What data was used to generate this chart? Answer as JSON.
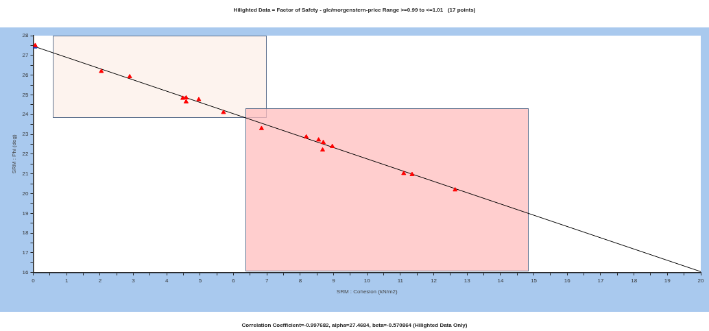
{
  "chart_data": {
    "type": "scatter",
    "title": "Hilighted Data = Factor of Safety - gle/morgenstern-price Range >=0.99 to <=1.01   (17 points)",
    "xlabel": "SRM : Cohesion (kN/m2)",
    "ylabel": "SRM : Phi (deg)",
    "annotations": [
      "Correlation Coefficient=-0.997682, alpha=27.4684, beta=-0.570864 (Hilighted Data Only)"
    ],
    "xlim": [
      0,
      20
    ],
    "ylim": [
      16,
      28
    ],
    "xticks": [
      0,
      {
        "value": 0.5,
        "label": null
      },
      1,
      {
        "value": 1.5,
        "label": null
      },
      2,
      {
        "value": 2.5,
        "label": null
      },
      3,
      {
        "value": 3.5,
        "label": null
      },
      4,
      {
        "value": 4.5,
        "label": null
      },
      5,
      {
        "value": 5.5,
        "label": null
      },
      6,
      {
        "value": 6.5,
        "label": null
      },
      7,
      {
        "value": 7.5,
        "label": null
      },
      8,
      {
        "value": 8.5,
        "label": null
      },
      9,
      {
        "value": 9.5,
        "label": null
      },
      10,
      {
        "value": 10.5,
        "label": null
      },
      11,
      {
        "value": 11.5,
        "label": null
      },
      12,
      {
        "value": 12.5,
        "label": null
      },
      13,
      {
        "value": 13.5,
        "label": null
      },
      14,
      {
        "value": 14.5,
        "label": null
      },
      15,
      {
        "value": 15.5,
        "label": null
      },
      16,
      {
        "value": 16.5,
        "label": null
      },
      17,
      {
        "value": 17.5,
        "label": null
      },
      18,
      {
        "value": 18.5,
        "label": null
      },
      19,
      {
        "value": 19.5,
        "label": null
      },
      20
    ],
    "yticks": [
      16,
      {
        "value": 16.5,
        "label": null
      },
      17,
      {
        "value": 17.5,
        "label": null
      },
      18,
      {
        "value": 18.5,
        "label": null
      },
      19,
      {
        "value": 19.5,
        "label": null
      },
      20,
      {
        "value": 20.5,
        "label": null
      },
      21,
      {
        "value": 21.5,
        "label": null
      },
      22,
      {
        "value": 22.5,
        "label": null
      },
      23,
      {
        "value": 23.5,
        "label": null
      },
      24,
      {
        "value": 24.5,
        "label": null
      },
      25,
      {
        "value": 25.5,
        "label": null
      },
      26,
      {
        "value": 26.5,
        "label": null
      },
      27,
      {
        "value": 27.5,
        "label": null
      },
      28
    ],
    "grid": false,
    "legend": false,
    "series": [
      {
        "color": "#ff0000",
        "marker": "triangle",
        "x": [
          0.06,
          2.04,
          2.89,
          4.48,
          4.58,
          4.58,
          4.96,
          5.7,
          6.84,
          8.18,
          8.55,
          8.69,
          8.67,
          8.96,
          11.1,
          11.35,
          12.64
        ],
        "values": [
          27.5,
          26.19,
          25.92,
          24.83,
          24.85,
          24.65,
          24.76,
          24.11,
          23.3,
          22.87,
          22.72,
          22.59,
          22.21,
          22.39,
          21.02,
          20.97,
          20.19
        ]
      },
      {
        "color": "#1f3fbf",
        "marker": "triangle",
        "x": [
          0.05
        ],
        "values": [
          27.43
        ]
      },
      {
        "type": "line",
        "color": "#000000",
        "marker": "none",
        "x": [
          0,
          20
        ],
        "values": [
          27.47,
          16.05
        ]
      }
    ]
  }
}
